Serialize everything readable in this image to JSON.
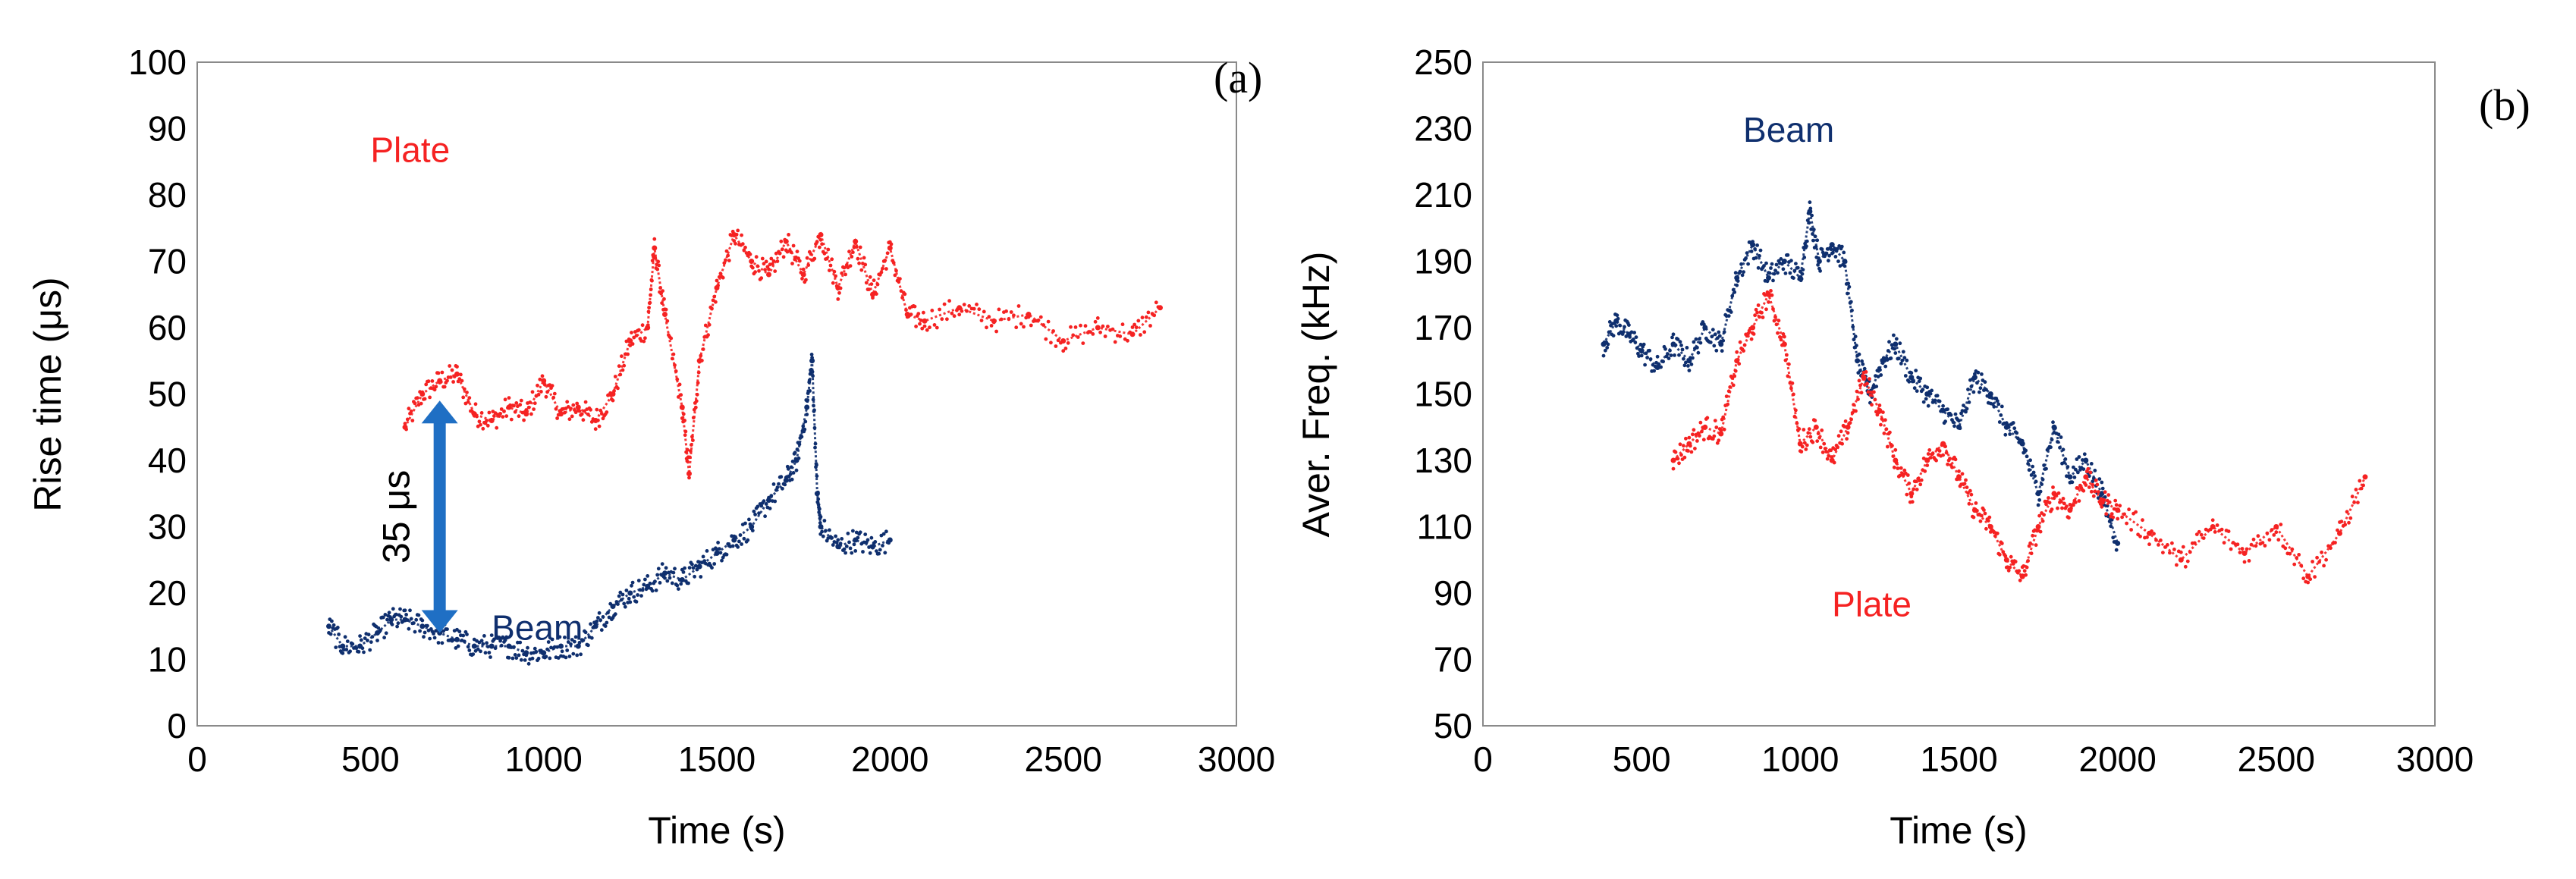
{
  "colors": {
    "plate": "#f52222",
    "beam": "#0f2f6e",
    "arrow": "#1f6fc4"
  },
  "chart_data": [
    {
      "type": "scatter",
      "panel_label": "(a)",
      "xlabel": "Time (s)",
      "ylabel": "Rise time (μs)",
      "xlim": [
        0,
        3000
      ],
      "ylim": [
        0,
        100
      ],
      "xticks": [
        "0",
        "500",
        "1000",
        "1500",
        "2000",
        "2500",
        "3000"
      ],
      "yticks": [
        "0",
        "10",
        "20",
        "30",
        "40",
        "50",
        "60",
        "70",
        "80",
        "90",
        "100"
      ],
      "annotation": "35 μs",
      "arrow": {
        "x": 700,
        "y_from": 14,
        "y_to": 49
      },
      "series": [
        {
          "name": "Plate",
          "label_at": [
            500,
            85
          ],
          "x": [
            600,
            650,
            700,
            750,
            800,
            850,
            900,
            950,
            1000,
            1050,
            1100,
            1150,
            1200,
            1250,
            1300,
            1320,
            1350,
            1400,
            1420,
            1450,
            1500,
            1550,
            1600,
            1650,
            1700,
            1750,
            1800,
            1850,
            1900,
            1950,
            2000,
            2050,
            2100,
            2200,
            2300,
            2400,
            2500,
            2600,
            2700,
            2780
          ],
          "values": [
            45,
            50,
            52,
            53,
            47,
            46,
            48,
            47,
            52,
            47,
            48,
            46,
            50,
            58,
            60,
            72,
            62,
            48,
            38,
            55,
            66,
            74,
            70,
            68,
            73,
            68,
            74,
            66,
            73,
            65,
            72,
            62,
            61,
            63,
            61,
            62,
            58,
            60,
            59,
            63
          ]
        },
        {
          "name": "Beam",
          "label_at": [
            850,
            13
          ],
          "x": [
            380,
            420,
            470,
            520,
            560,
            600,
            650,
            700,
            750,
            800,
            850,
            900,
            950,
            1000,
            1050,
            1100,
            1150,
            1200,
            1250,
            1300,
            1350,
            1400,
            1450,
            1500,
            1550,
            1600,
            1650,
            1700,
            1730,
            1760,
            1775,
            1790,
            1800,
            1850,
            1900,
            1950,
            2000
          ],
          "values": [
            15,
            12,
            12,
            14,
            16,
            16,
            15,
            14,
            13,
            12,
            12,
            12,
            11,
            11,
            12,
            12,
            15,
            18,
            20,
            21,
            23,
            22,
            24,
            26,
            28,
            30,
            34,
            37,
            40,
            48,
            55,
            35,
            30,
            27,
            28,
            27,
            28
          ]
        }
      ]
    },
    {
      "type": "scatter",
      "panel_label": "(b)",
      "xlabel": "Time (s)",
      "ylabel": "Aver. Freq. (kHz)",
      "xlim": [
        0,
        3000
      ],
      "ylim": [
        50,
        250
      ],
      "xticks": [
        "0",
        "500",
        "1000",
        "1500",
        "2000",
        "2500",
        "3000"
      ],
      "yticks": [
        "50",
        "70",
        "90",
        "110",
        "130",
        "150",
        "170",
        "190",
        "210",
        "230",
        "250"
      ],
      "series": [
        {
          "name": "Beam",
          "label_at": [
            820,
            226
          ],
          "x": [
            380,
            420,
            460,
            500,
            550,
            600,
            650,
            700,
            750,
            800,
            850,
            900,
            950,
            1000,
            1030,
            1060,
            1100,
            1140,
            1180,
            1220,
            1260,
            1300,
            1350,
            1400,
            1450,
            1500,
            1550,
            1600,
            1650,
            1700,
            1750,
            1800,
            1850,
            1900,
            1950,
            2000
          ],
          "values": [
            165,
            172,
            168,
            163,
            158,
            165,
            160,
            170,
            165,
            185,
            195,
            185,
            190,
            185,
            205,
            190,
            195,
            190,
            160,
            150,
            160,
            165,
            155,
            150,
            145,
            140,
            155,
            150,
            140,
            135,
            120,
            140,
            125,
            130,
            120,
            105
          ]
        },
        {
          "name": "Plate",
          "label_at": [
            1100,
            83
          ],
          "x": [
            600,
            650,
            700,
            750,
            800,
            850,
            900,
            950,
            1000,
            1050,
            1100,
            1150,
            1200,
            1250,
            1300,
            1350,
            1400,
            1450,
            1500,
            1550,
            1600,
            1650,
            1700,
            1750,
            1800,
            1850,
            1900,
            1950,
            2000,
            2100,
            2200,
            2300,
            2400,
            2500,
            2600,
            2700,
            2780
          ],
          "values": [
            130,
            135,
            140,
            138,
            160,
            170,
            180,
            165,
            135,
            140,
            130,
            140,
            155,
            145,
            130,
            120,
            130,
            135,
            125,
            115,
            110,
            100,
            95,
            110,
            120,
            115,
            125,
            118,
            115,
            108,
            100,
            110,
            102,
            110,
            95,
            108,
            125
          ]
        }
      ]
    }
  ]
}
